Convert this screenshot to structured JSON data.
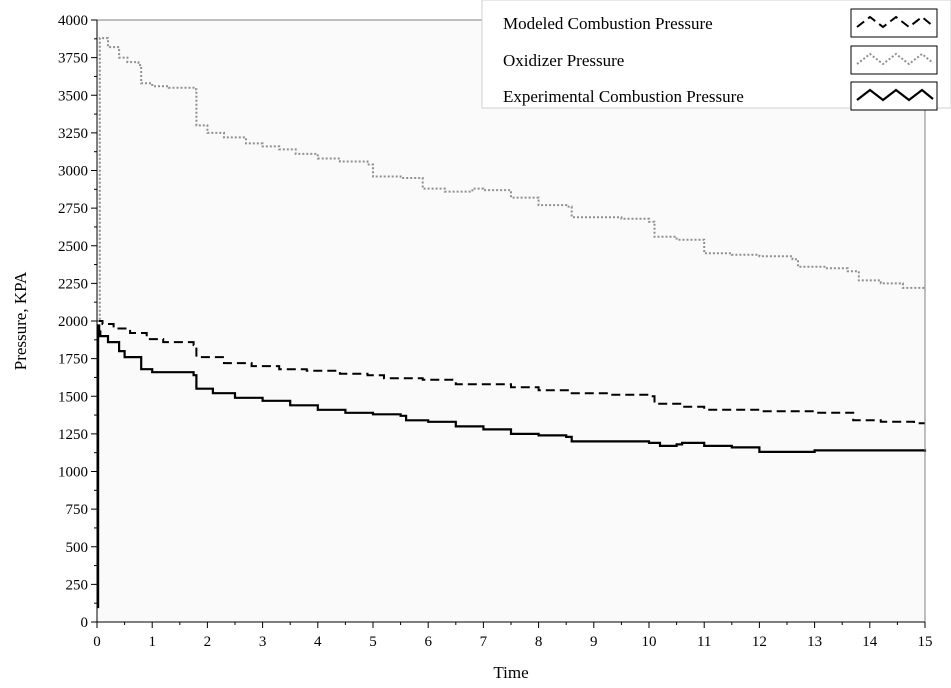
{
  "chart_data": {
    "type": "line",
    "xlabel": "Time",
    "ylabel": "Pressure, KPA",
    "xlim": [
      0,
      15
    ],
    "ylim": [
      0,
      4000
    ],
    "x_ticks": [
      0,
      1,
      2,
      3,
      4,
      5,
      6,
      7,
      8,
      9,
      10,
      11,
      12,
      13,
      14,
      15
    ],
    "y_ticks": [
      0,
      250,
      500,
      750,
      1000,
      1250,
      1500,
      1750,
      2000,
      2250,
      2500,
      2750,
      3000,
      3250,
      3500,
      3750,
      4000
    ],
    "grid": false,
    "legend_position": "top-right",
    "colors": {
      "plot_background": "#fafafa",
      "axis": "#000000",
      "frame": "#808080"
    },
    "series": [
      {
        "name": "Modeled Combustion Pressure",
        "color": "#000000",
        "style": "dashed",
        "x": [
          0,
          0.1,
          0.3,
          0.6,
          0.9,
          1.2,
          1.75,
          1.8,
          2.3,
          2.8,
          3.3,
          3.8,
          4.4,
          4.9,
          5.2,
          5.9,
          6.5,
          7.0,
          7.5,
          8.0,
          8.6,
          9.3,
          10.0,
          10.1,
          10.6,
          11.0,
          11.5,
          12.0,
          12.6,
          13.0,
          13.7,
          14.2,
          14.8,
          15.0
        ],
        "y": [
          2000,
          1980,
          1950,
          1920,
          1880,
          1860,
          1840,
          1760,
          1720,
          1700,
          1680,
          1670,
          1650,
          1640,
          1620,
          1610,
          1580,
          1580,
          1560,
          1540,
          1520,
          1510,
          1500,
          1450,
          1430,
          1410,
          1410,
          1400,
          1400,
          1390,
          1340,
          1330,
          1320,
          1320
        ]
      },
      {
        "name": "Oxidizer Pressure",
        "color": "#909090",
        "style": "dotted",
        "x": [
          0,
          0.05,
          0.2,
          0.4,
          0.55,
          0.75,
          0.8,
          1.0,
          1.3,
          1.75,
          1.8,
          2.0,
          2.3,
          2.7,
          3.0,
          3.3,
          3.6,
          4.0,
          4.4,
          4.9,
          5.0,
          5.5,
          5.9,
          6.3,
          6.8,
          7.0,
          7.5,
          8.0,
          8.5,
          8.6,
          9.5,
          10.0,
          10.1,
          10.5,
          11.0,
          11.5,
          12.0,
          12.6,
          12.7,
          13.2,
          13.6,
          13.8,
          14.2,
          14.6,
          15.0
        ],
        "y": [
          2000,
          3880,
          3820,
          3750,
          3720,
          3700,
          3580,
          3560,
          3550,
          3540,
          3300,
          3250,
          3220,
          3180,
          3160,
          3140,
          3110,
          3080,
          3060,
          3040,
          2960,
          2950,
          2880,
          2860,
          2880,
          2870,
          2820,
          2770,
          2760,
          2690,
          2680,
          2660,
          2560,
          2540,
          2450,
          2440,
          2430,
          2410,
          2360,
          2350,
          2330,
          2270,
          2250,
          2220,
          2210
        ]
      },
      {
        "name": "Experimental Combustion Pressure",
        "color": "#000000",
        "style": "solid",
        "x": [
          0,
          0.02,
          0.04,
          0.06,
          0.2,
          0.4,
          0.5,
          0.8,
          1.0,
          1.75,
          1.8,
          2.1,
          2.5,
          3.0,
          3.5,
          4.0,
          4.5,
          5.0,
          5.5,
          5.6,
          6.0,
          6.5,
          7.0,
          7.5,
          8.0,
          8.5,
          8.6,
          9.0,
          10.0,
          10.2,
          10.5,
          10.6,
          11.0,
          11.5,
          12.0,
          12.5,
          13.0,
          13.5,
          14.0,
          14.5,
          15.0
        ],
        "y": [
          100,
          1970,
          1930,
          1900,
          1860,
          1800,
          1760,
          1680,
          1660,
          1640,
          1550,
          1520,
          1490,
          1470,
          1440,
          1410,
          1390,
          1380,
          1370,
          1340,
          1330,
          1300,
          1280,
          1250,
          1240,
          1230,
          1200,
          1200,
          1190,
          1170,
          1180,
          1190,
          1170,
          1160,
          1130,
          1130,
          1140,
          1140,
          1140,
          1140,
          1130
        ]
      }
    ]
  }
}
